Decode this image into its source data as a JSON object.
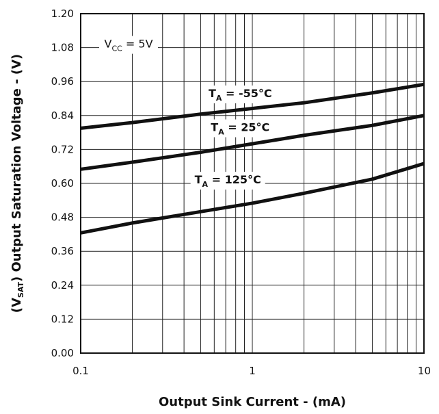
{
  "chart_data": {
    "type": "line",
    "xlabel": "Output Sink Current - (mA)",
    "ylabel": {
      "prefix": "(V",
      "sub": "SAT",
      "suffix": ")  Output Saturation Voltage - (V)"
    },
    "x_scale": "log",
    "xlim": [
      0.1,
      10
    ],
    "ylim": [
      0,
      1.2
    ],
    "x_ticks": [
      {
        "value": 0.1,
        "label": "0.1"
      },
      {
        "value": 1,
        "label": "1"
      },
      {
        "value": 10,
        "label": "10"
      }
    ],
    "y_ticks": [
      {
        "value": 0,
        "label": "0.00"
      },
      {
        "value": 0.12,
        "label": "0.12"
      },
      {
        "value": 0.24,
        "label": "0.24"
      },
      {
        "value": 0.36,
        "label": "0.36"
      },
      {
        "value": 0.48,
        "label": "0.48"
      },
      {
        "value": 0.6,
        "label": "0.60"
      },
      {
        "value": 0.72,
        "label": "0.72"
      },
      {
        "value": 0.84,
        "label": "0.84"
      },
      {
        "value": 0.96,
        "label": "0.96"
      },
      {
        "value": 1.08,
        "label": "1.08"
      },
      {
        "value": 1.2,
        "label": "1.20"
      }
    ],
    "grid": true,
    "annotation": {
      "main": "V",
      "sub": "CC",
      "rest": " = 5V",
      "x": 0.1,
      "y": 1.08
    },
    "series": [
      {
        "label": {
          "main": "T",
          "sub": "A",
          "rest": " = -55°C",
          "x": 0.85,
          "y": 0.905
        },
        "x": [
          0.1,
          0.2,
          0.5,
          1,
          2,
          5,
          10
        ],
        "y": [
          0.795,
          0.815,
          0.845,
          0.865,
          0.885,
          0.92,
          0.95
        ]
      },
      {
        "label": {
          "main": "T",
          "sub": "A",
          "rest": " = 25°C",
          "x": 0.85,
          "y": 0.785
        },
        "x": [
          0.1,
          0.2,
          0.5,
          1,
          2,
          5,
          10
        ],
        "y": [
          0.65,
          0.675,
          0.71,
          0.74,
          0.77,
          0.805,
          0.84
        ]
      },
      {
        "label": {
          "main": "T",
          "sub": "A",
          "rest": " = 125°C",
          "x": 0.72,
          "y": 0.6
        },
        "x": [
          0.1,
          0.2,
          0.5,
          1,
          2,
          5,
          10
        ],
        "y": [
          0.425,
          0.46,
          0.5,
          0.53,
          0.565,
          0.615,
          0.67
        ]
      }
    ]
  }
}
